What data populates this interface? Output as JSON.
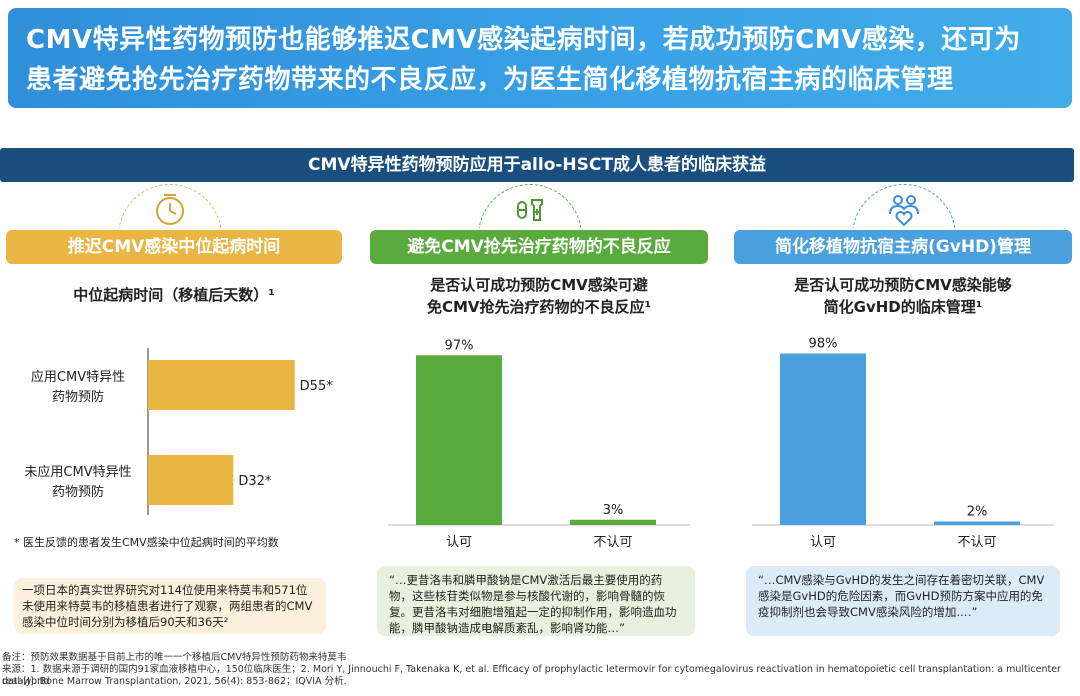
{
  "headline": {
    "line1": "CMV特异性药物预防也能够推迟CMV感染起病时间，若成功预防CMV感染，还可为",
    "line2": "患者避免抢先治疗药物带来的不良反应，为医生简化移植物抗宿主病的临床管理"
  },
  "section_banner": "CMV特异性药物预防应用于allo-HSCT成人患者的临床获益",
  "columns": [
    {
      "header": "推迟CMV感染中位起病时间",
      "icon": "clock-icon",
      "chart_title": "中位起病时间（移植后天数）¹"
    },
    {
      "header": "避免CMV抢先治疗药物的不良反应",
      "icon": "medicine-icon",
      "chart_title_l1": "是否认可成功预防CMV感染可避",
      "chart_title_l2": "免CMV抢先治疗药物的不良反应¹"
    },
    {
      "header": "简化移植物抗宿主病(GvHD)管理",
      "icon": "patients-heart-icon",
      "chart_title_l1": "是否认可成功预防CMV感染能够",
      "chart_title_l2": "简化GvHD的临床管理¹"
    }
  ],
  "colors": {
    "gold": "#e9b643",
    "green": "#5aab3d",
    "blue": "#4aa0dd",
    "navy": "#1a4e7e"
  },
  "chart_data": [
    {
      "type": "bar",
      "orientation": "horizontal",
      "categories": [
        "应用CMV特异性药物预防",
        "未应用CMV特异性药物预防"
      ],
      "category_lines": [
        [
          "应用CMV特异性",
          "药物预防"
        ],
        [
          "未应用CMV特异性",
          "药物预防"
        ]
      ],
      "values": [
        55,
        32
      ],
      "value_labels": [
        "D55*",
        "D32*"
      ],
      "xlim": [
        0,
        60
      ],
      "color": "#e9b643"
    },
    {
      "type": "bar",
      "categories": [
        "认可",
        "不认可"
      ],
      "values": [
        97,
        3
      ],
      "value_labels": [
        "97%",
        "3%"
      ],
      "ylim": [
        0,
        100
      ],
      "color": "#5aab3d"
    },
    {
      "type": "bar",
      "categories": [
        "认可",
        "不认可"
      ],
      "values": [
        98,
        2
      ],
      "value_labels": [
        "98%",
        "2%"
      ],
      "ylim": [
        0,
        100
      ],
      "color": "#4aa0dd"
    }
  ],
  "note1": "* 医生反馈的患者发生CMV感染中位起病时间的平均数",
  "quote1": "一项日本的真实世界研究对114位使用来特莫韦和571位未使用来特莫韦的移植患者进行了观察，两组患者的CMV感染中位时间分别为移植后90天和36天²",
  "quote2": "“…更昔洛韦和膦甲酸钠是CMV激活后最主要使用的药物，这些核苷类似物是参与核酸代谢的，影响骨髓的恢复。更昔洛韦对细胞增殖起一定的抑制作用，影响造血功能，膦甲酸钠造成电解质紊乱，影响肾功能…”",
  "quote3": "“…CMV感染与GvHD的发生之间存在着密切关联，CMV感染是GvHD的危险因素，而GvHD预防方案中应用的免疫抑制剂也会导致CMV感染风险的增加.…”",
  "footnotes": {
    "note": "备注：预防效果数据基于目前上市的唯一一个移植后CMV特异性预防药物来特莫韦",
    "source1": "来源：1. 数据来源于调研的国内91家血液移植中心，150位临床医生；2. Mori Y, Jinnouchi F, Takenaka K, et al. Efficacy of prophylactic letermovir for cytomegalovirus reactivation in hematopoietic cell transplantation: a multicenter real-world",
    "source2": "data[J]. Bone Marrow Transplantation, 2021, 56(4): 853-862；IQVIA 分析."
  }
}
